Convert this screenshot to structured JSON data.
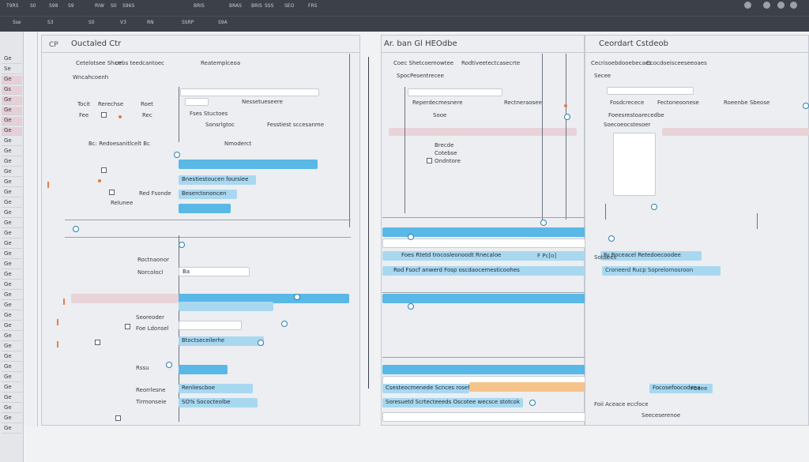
{
  "topbar": {
    "row1": [
      "T9RS",
      "S0",
      "S98",
      "S9",
      "RIW",
      "S0",
      "S96S",
      "BRIS",
      "BRAS",
      "BRIS",
      "SSS",
      "SEO",
      "FRS"
    ],
    "row2": [
      "Sse",
      "S3",
      "S0",
      "V3",
      "RN",
      "SSRP",
      "S9A"
    ]
  },
  "left_panel": {
    "title": "Ouctaled Ctr",
    "tag": "CP",
    "header_labels": [
      "Cetelotsee Shcrr",
      "cebs teedcantoec",
      "Reatemplceoa",
      "Wncahcoenh"
    ],
    "labels": [
      "Tocit",
      "Rerechse",
      "Roet",
      "Fee",
      "Rec",
      "Bc: Redoesanitlcelt Bc",
      "Nmoderct",
      "Red Fsonde",
      "Relunee",
      "Roctnaonor",
      "Norcolocl",
      "Seoreoder",
      "Foe Ldonsel",
      "Rssu",
      "Reorrlesne",
      "Tirmonseie"
    ],
    "field_labels": [
      "Fses Stuctoes",
      "Sonsrlgtoc",
      "Fesstiest sccesanme",
      "Nessetueseere"
    ],
    "bars": [
      "Bnestiestoucen foursiee",
      "Beserctononcen",
      "Btoctseceilerhe",
      "Ba",
      "Renliescboe",
      "SO% Sococteolbe"
    ]
  },
  "middle_panel": {
    "title": "Ar. ban Gl HEOdbe",
    "header_labels": [
      "Coec Shetcoemowtee",
      "Rodtiveetectcasecrte",
      "SpocPesentrecee",
      "Reperdecmesnere",
      "Rectneraosee",
      "Sooe"
    ],
    "list": [
      "Brecde",
      "Cotebse",
      "Ondntore"
    ],
    "bars": [
      "Foes Rtetd trocosleonoodt Rnecaloe",
      "Rod Fsocf anwerd Fosp oscdaocemesticoohes",
      "Sotdees",
      "Csesteocmenede Scnces rosefecotsebe",
      "Soresuetd Scrtecteeeds Oscotee wecsce stotcok"
    ],
    "bar_tags": [
      "F Pc[o]",
      "Fbeee"
    ]
  },
  "right_panel": {
    "title": "Ceordart Cstdeob",
    "header_labels": [
      "Cecrisoebdooebecaes",
      "Ccocdoeisceeseeoaes",
      "Secee",
      "Fosdcrecece",
      "Fectoneoonese",
      "Roeenbe Sbeose",
      "Foeesrestoarecedbe",
      "Soecoeocstesoer"
    ],
    "bars": [
      "Fy Roceacel Retedoecoodee",
      "Croneerd Rucp Soprelornosroon",
      "Focosefoocodeea"
    ],
    "bottom": [
      "Foii Aceace eccfoce",
      "Seeceserenoe"
    ]
  }
}
